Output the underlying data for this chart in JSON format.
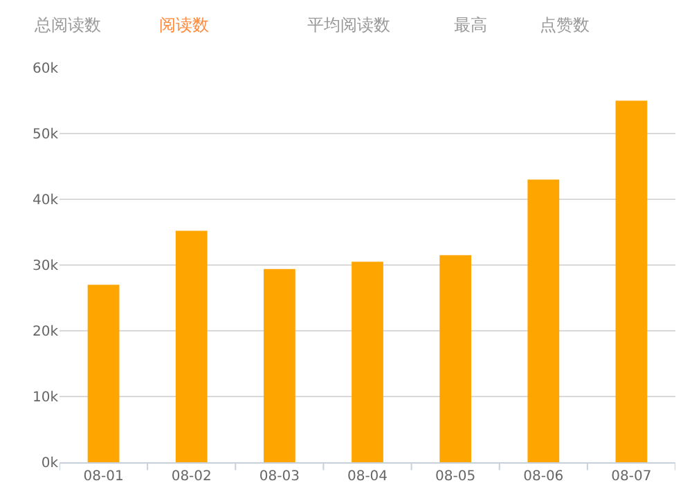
{
  "chart_data": {
    "type": "bar",
    "categories": [
      "08-01",
      "08-02",
      "08-03",
      "08-04",
      "08-05",
      "08-06",
      "08-07"
    ],
    "values": [
      27000,
      35200,
      29400,
      30500,
      31500,
      43000,
      55000
    ],
    "color": "#ffa500",
    "ylim": [
      0,
      60000
    ],
    "yticks": [
      {
        "value": 0,
        "label": "0k"
      },
      {
        "value": 10000,
        "label": "10k"
      },
      {
        "value": 20000,
        "label": "20k"
      },
      {
        "value": 30000,
        "label": "30k"
      },
      {
        "value": 40000,
        "label": "40k"
      },
      {
        "value": 50000,
        "label": "50k"
      },
      {
        "value": 60000,
        "label": "60k"
      }
    ],
    "grid": "y",
    "annotations": [
      "总阅读数",
      "阅读数",
      "平均阅读数",
      "最高",
      "点赞数"
    ]
  }
}
